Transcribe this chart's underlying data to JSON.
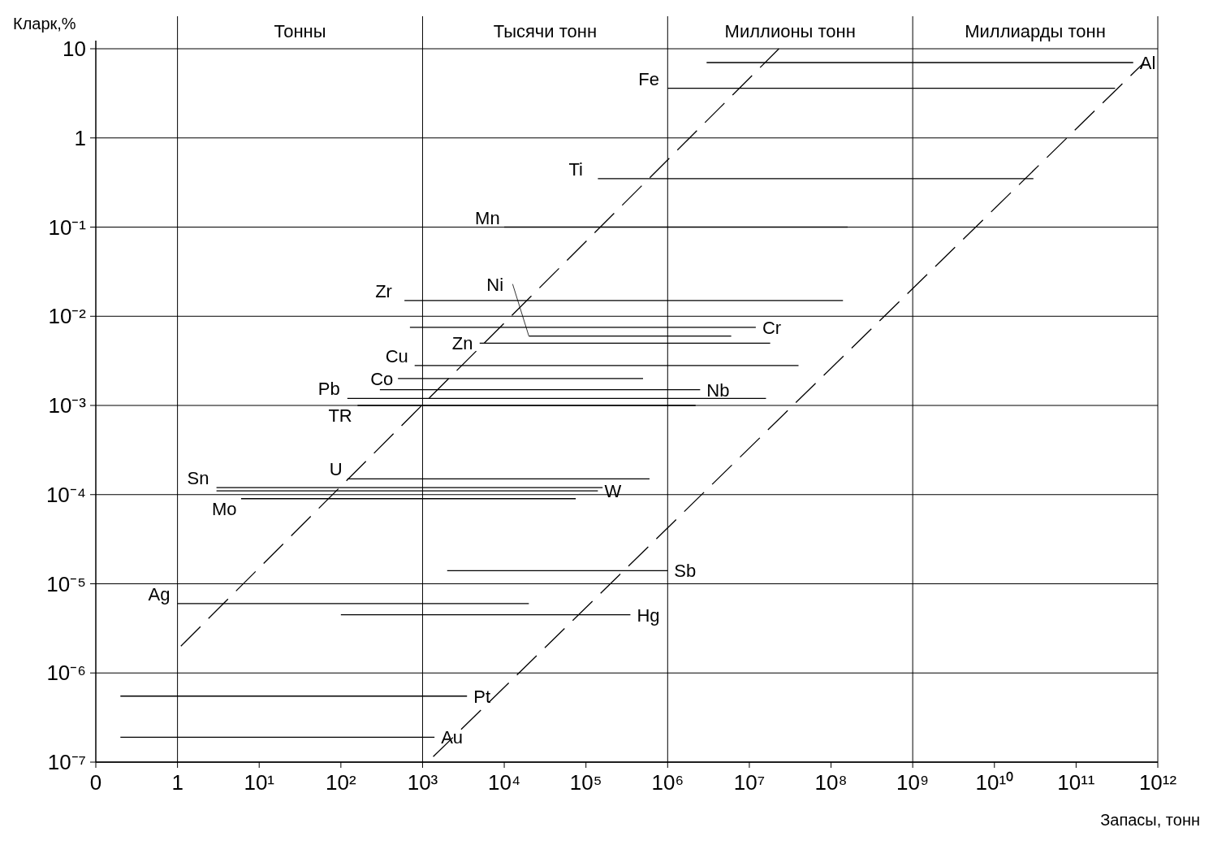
{
  "chart_data": {
    "type": "line",
    "xlabel": "Запасы, тонн",
    "ylabel": "Кларк,%",
    "log": "xy",
    "grid": "y",
    "marker": "none",
    "xlim": [
      0.1,
      1000000000000.0
    ],
    "ylim": [
      1e-07,
      10
    ],
    "xticks": [
      {
        "value": 0.1,
        "label": "0"
      },
      1,
      {
        "value": 10,
        "label": "10¹"
      },
      {
        "value": 100,
        "label": "10²"
      },
      {
        "value": 1000,
        "label": "10³"
      },
      {
        "value": 10000.0,
        "label": "10⁴"
      },
      {
        "value": 100000.0,
        "label": "10⁵"
      },
      {
        "value": 1000000.0,
        "label": "10⁶"
      },
      {
        "value": 10000000.0,
        "label": "10⁷"
      },
      {
        "value": 100000000.0,
        "label": "10⁸"
      },
      {
        "value": 1000000000.0,
        "label": "10⁹"
      },
      {
        "value": 10000000000.0,
        "label": "10¹⁰"
      },
      {
        "value": 100000000000.0,
        "label": "10¹¹"
      },
      {
        "value": 1000000000000.0,
        "label": "10¹²"
      }
    ],
    "yticks": [
      {
        "value": 1e-07,
        "label": "10⁻⁷"
      },
      {
        "value": 1e-06,
        "label": "10⁻⁶"
      },
      {
        "value": 1e-05,
        "label": "10⁻⁵"
      },
      {
        "value": 0.0001,
        "label": "10⁻⁴"
      },
      {
        "value": 0.001,
        "label": "10⁻³"
      },
      {
        "value": 0.01,
        "label": "10⁻²"
      },
      {
        "value": 0.1,
        "label": "10⁻¹"
      },
      1,
      10
    ],
    "ref_lines": [
      {
        "axis": "x",
        "value": 1
      },
      {
        "axis": "x",
        "value": 1000
      },
      {
        "axis": "x",
        "value": 1000000.0
      },
      {
        "axis": "x",
        "value": 1000000000.0
      }
    ],
    "annotations": [
      "Тонны",
      "Тысячи тонн",
      "Миллионы тонн",
      "Миллиарды тонн"
    ],
    "series": [
      {
        "name": "Al",
        "color": "#000000",
        "x": [
          3000000.0,
          500000000000.0
        ],
        "values": [
          7,
          7
        ]
      },
      {
        "name": "Fe",
        "color": "#000000",
        "x": [
          1000000.0,
          300000000000.0
        ],
        "values": [
          3.6,
          3.6
        ]
      },
      {
        "name": "Ti",
        "color": "#000000",
        "x": [
          140000.0,
          30000000000.0
        ],
        "values": [
          0.35,
          0.35
        ]
      },
      {
        "name": "Mn",
        "color": "#000000",
        "x": [
          10000.0,
          160000000.0
        ],
        "values": [
          0.1,
          0.1
        ]
      },
      {
        "name": "Zr",
        "color": "#000000",
        "x": [
          600,
          140000000.0
        ],
        "values": [
          0.015,
          0.015
        ]
      },
      {
        "name": "Cr",
        "color": "#000000",
        "x": [
          700,
          12000000.0
        ],
        "values": [
          0.0075,
          0.0075
        ]
      },
      {
        "name": "Ni",
        "color": "#000000",
        "x": [
          20000.0,
          6000000.0
        ],
        "values": [
          0.006,
          0.006
        ]
      },
      {
        "name": "Zn",
        "color": "#000000",
        "x": [
          5000,
          18000000.0
        ],
        "values": [
          0.005,
          0.005
        ]
      },
      {
        "name": "Cu",
        "color": "#000000",
        "x": [
          800,
          40000000.0
        ],
        "values": [
          0.0028,
          0.0028
        ]
      },
      {
        "name": "Co",
        "color": "#000000",
        "x": [
          500,
          500000.0
        ],
        "values": [
          0.002,
          0.002
        ]
      },
      {
        "name": "Nb",
        "color": "#000000",
        "x": [
          300,
          2500000.0
        ],
        "values": [
          0.0015,
          0.0015
        ]
      },
      {
        "name": "Pb",
        "color": "#000000",
        "x": [
          120,
          16000000.0
        ],
        "values": [
          0.0012,
          0.0012
        ]
      },
      {
        "name": "TR",
        "color": "#000000",
        "x": [
          160,
          2200000.0
        ],
        "values": [
          0.001,
          0.001
        ]
      },
      {
        "name": "U",
        "color": "#000000",
        "x": [
          120,
          600000.0
        ],
        "values": [
          0.00015,
          0.00015
        ]
      },
      {
        "name": "Sn",
        "color": "#000000",
        "x": [
          3,
          160000.0
        ],
        "values": [
          0.00012,
          0.00012
        ]
      },
      {
        "name": "W",
        "color": "#000000",
        "x": [
          3,
          140000.0
        ],
        "values": [
          0.00011,
          0.00011
        ]
      },
      {
        "name": "Mo",
        "color": "#000000",
        "x": [
          6,
          75000.0
        ],
        "values": [
          9e-05,
          9e-05
        ]
      },
      {
        "name": "Sb",
        "color": "#000000",
        "x": [
          2000,
          1000000.0
        ],
        "values": [
          1.4e-05,
          1.4e-05
        ]
      },
      {
        "name": "Ag",
        "color": "#000000",
        "x": [
          1,
          20000.0
        ],
        "values": [
          6e-06,
          6e-06
        ]
      },
      {
        "name": "Hg",
        "color": "#000000",
        "x": [
          100,
          350000.0
        ],
        "values": [
          4.5e-06,
          4.5e-06
        ]
      },
      {
        "name": "Pt",
        "color": "#000000",
        "x": [
          0.2,
          3500
        ],
        "values": [
          5.5e-07,
          5.5e-07
        ]
      },
      {
        "name": "Au",
        "color": "#000000",
        "x": [
          0.2,
          1400
        ],
        "values": [
          1.9e-07,
          1.9e-07
        ]
      },
      {
        "color": "#000000",
        "line_style": "dashed",
        "x": [
          1.1,
          23000000.0
        ],
        "values": [
          2e-06,
          10
        ]
      },
      {
        "color": "#000000",
        "line_style": "dashed",
        "x": [
          1350,
          680000000000.0
        ],
        "values": [
          1.15e-07,
          7
        ]
      }
    ]
  }
}
